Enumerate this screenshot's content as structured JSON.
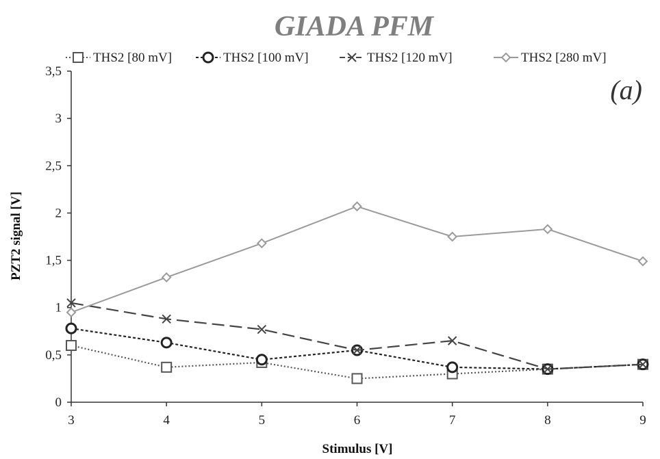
{
  "chart_data": {
    "type": "line",
    "title": "GIADA PFM",
    "annotation": "(a)",
    "xlabel": "Stimulus [V]",
    "ylabel": "PZT2 signal [V]",
    "x": [
      3,
      4,
      5,
      6,
      7,
      8,
      9
    ],
    "xlim": [
      3,
      9
    ],
    "ylim": [
      0,
      3.5
    ],
    "yticks": [
      "0",
      "0,5",
      "1",
      "1,5",
      "2",
      "2,5",
      "3",
      "3,5"
    ],
    "xticks": [
      "3",
      "4",
      "5",
      "6",
      "7",
      "8",
      "9"
    ],
    "grid": false,
    "legend_position": "top",
    "series": [
      {
        "name": "THS2 [80 mV]",
        "values": [
          0.6,
          0.37,
          0.42,
          0.25,
          0.3,
          0.35,
          0.4
        ],
        "marker": "square",
        "line": "dotted",
        "color": "#555555"
      },
      {
        "name": "THS2 [100 mV]",
        "values": [
          0.78,
          0.63,
          0.45,
          0.55,
          0.37,
          0.35,
          0.4
        ],
        "marker": "circle",
        "line": "short-dash",
        "color": "#222222"
      },
      {
        "name": "THS2 [120 mV]",
        "values": [
          1.05,
          0.88,
          0.77,
          0.55,
          0.65,
          0.35,
          0.4
        ],
        "marker": "x",
        "line": "long-dash",
        "color": "#444444"
      },
      {
        "name": "THS2 [280 mV]",
        "values": [
          0.95,
          1.32,
          1.68,
          2.07,
          1.75,
          1.83,
          1.49
        ],
        "marker": "diamond",
        "line": "solid",
        "color": "#9a9a9a"
      }
    ]
  }
}
